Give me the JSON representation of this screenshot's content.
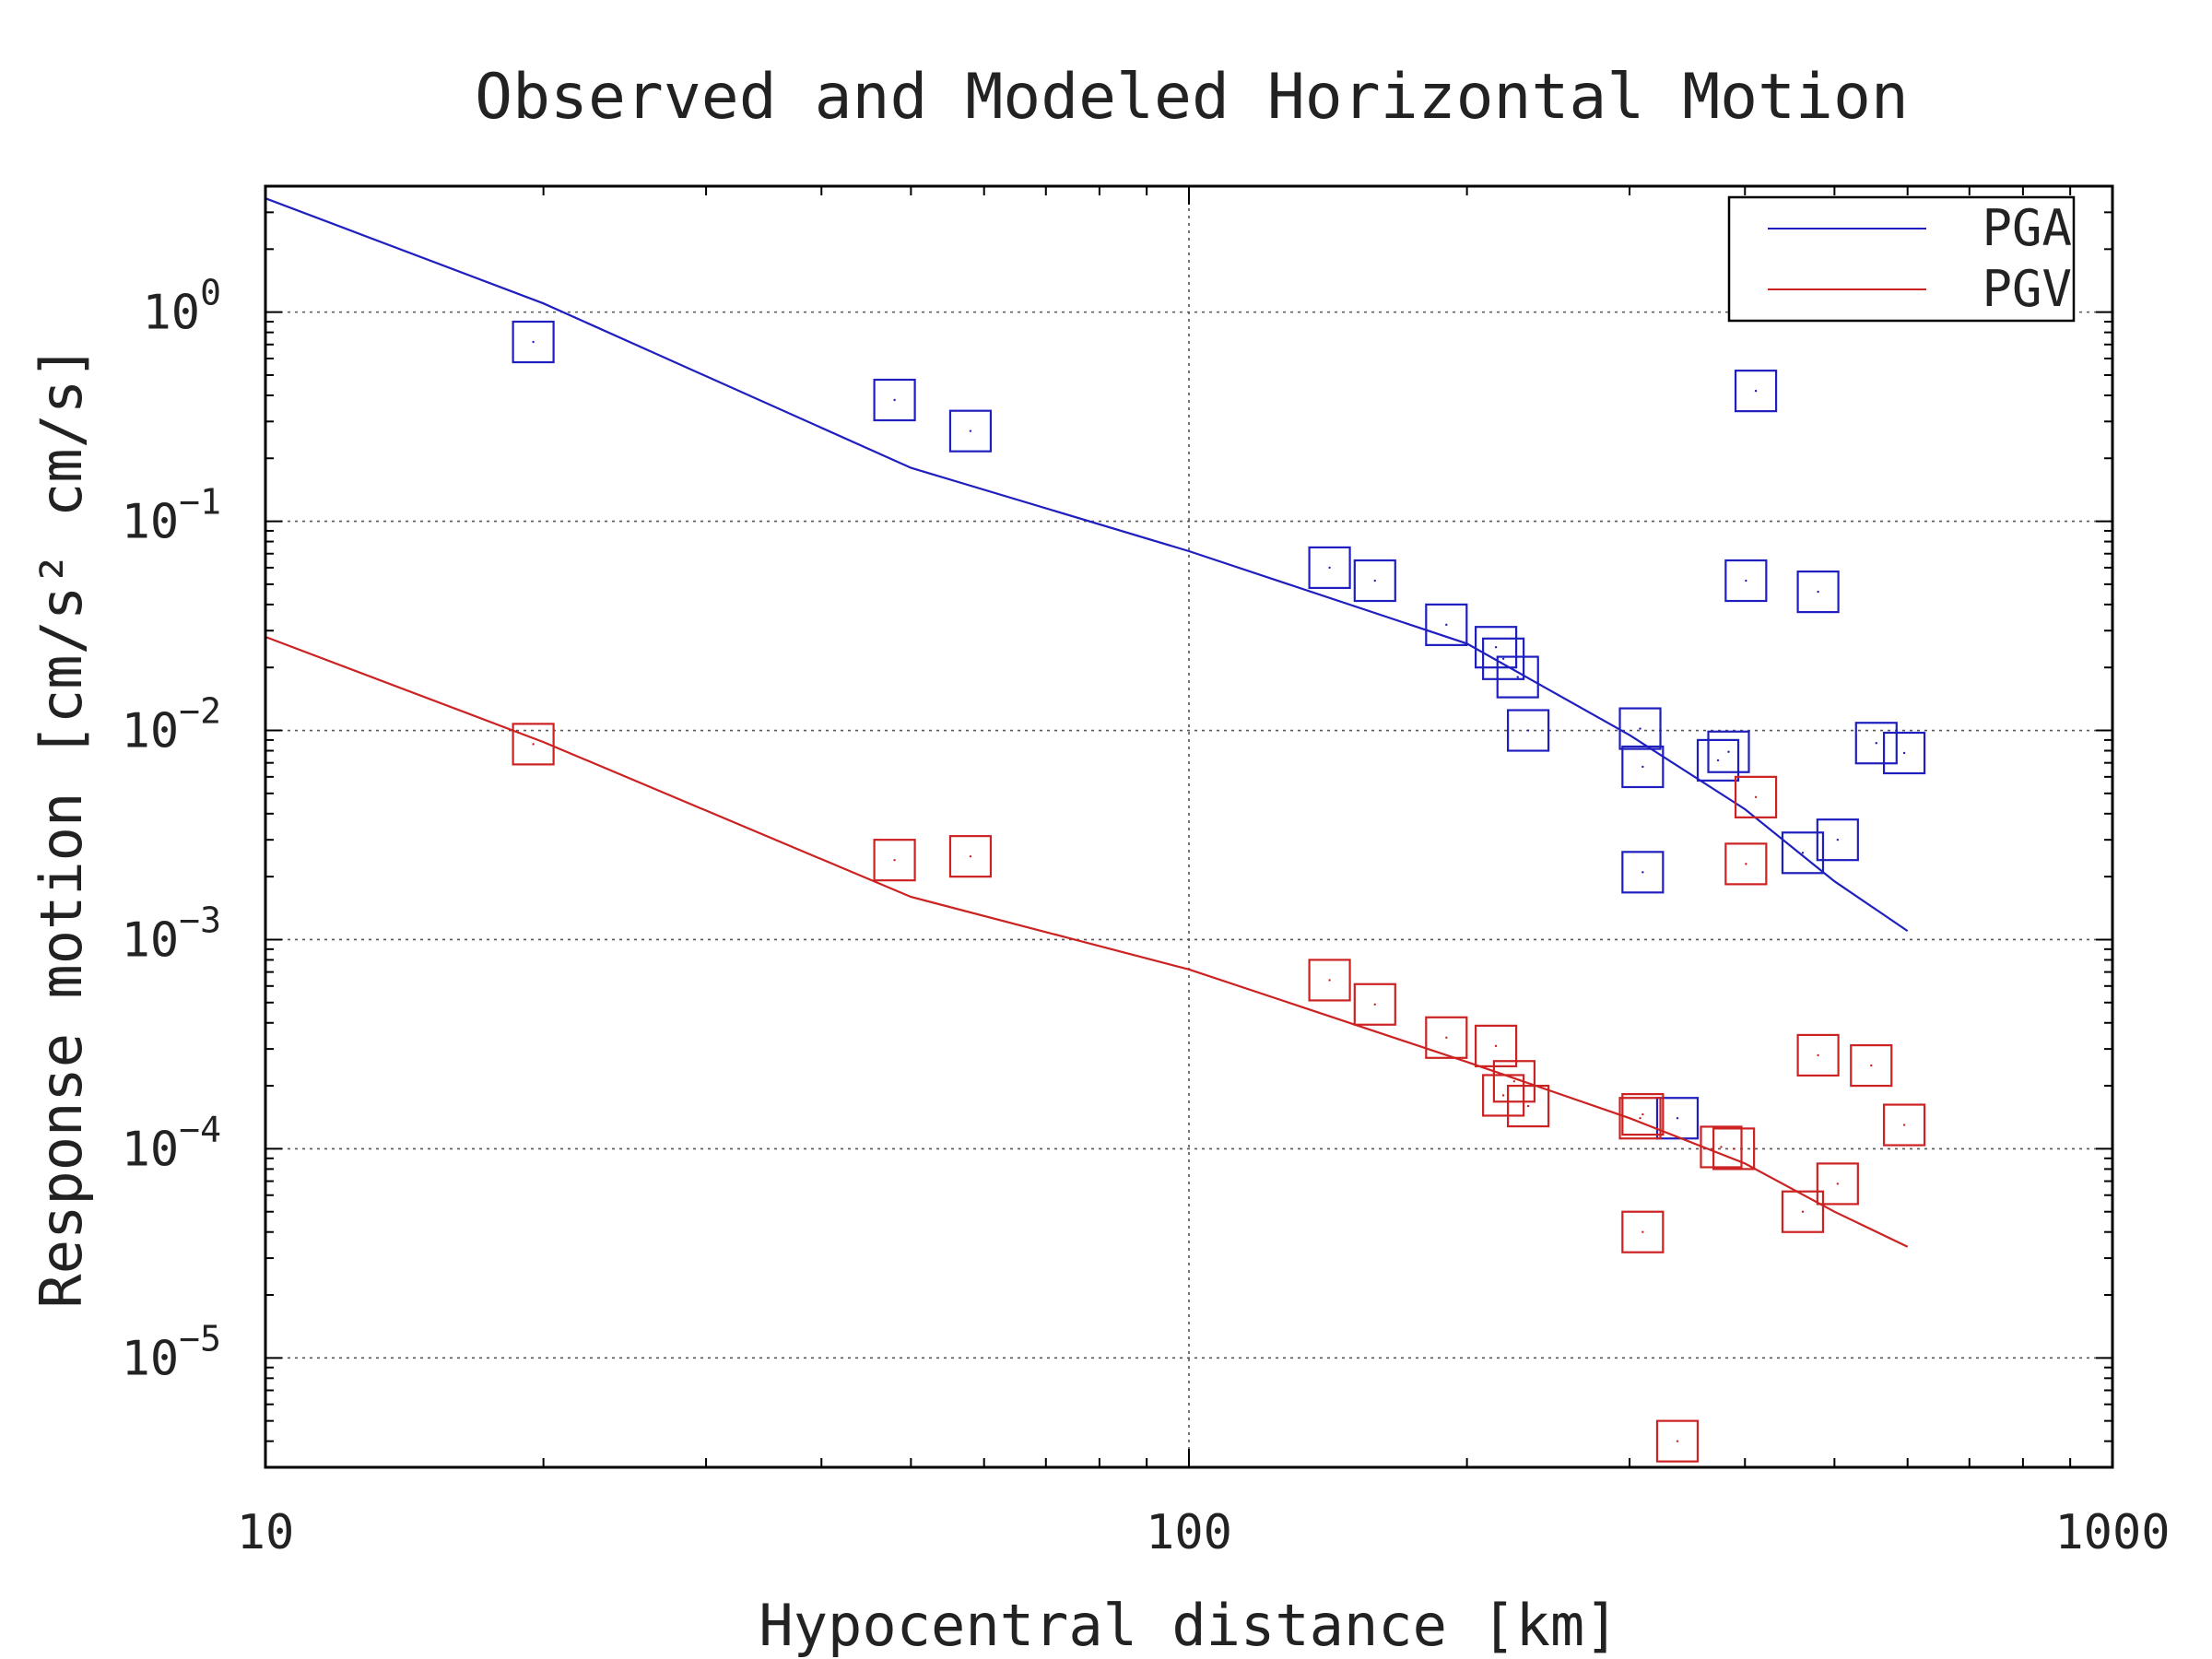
{
  "chart_data": {
    "type": "scatter",
    "title": "Observed and Modeled Horizontal Motion",
    "xlabel": "Hypocentral distance [km]",
    "ylabel": "Response motion [cm/s² cm/s]",
    "xscale": "log",
    "yscale": "log",
    "xlim": [
      10,
      1000
    ],
    "ylim": [
      3e-06,
      4
    ],
    "x_ticks": [
      {
        "value": 10,
        "label": "10"
      },
      {
        "value": 100,
        "label": "100"
      },
      {
        "value": 1000,
        "label": "1000"
      }
    ],
    "y_ticks": [
      {
        "value": 1,
        "base": "10",
        "exp": "0"
      },
      {
        "value": 0.1,
        "base": "10",
        "exp": "−1"
      },
      {
        "value": 0.01,
        "base": "10",
        "exp": "−2"
      },
      {
        "value": 0.001,
        "base": "10",
        "exp": "−3"
      },
      {
        "value": 0.0001,
        "base": "10",
        "exp": "−4"
      },
      {
        "value": 1e-05,
        "base": "10",
        "exp": "−5"
      }
    ],
    "grid": true,
    "legend_position": "top-right",
    "series": [
      {
        "name": "PGA",
        "color": "#1f1fbf",
        "model_line": [
          [
            10,
            3.5
          ],
          [
            20,
            1.1
          ],
          [
            50,
            0.18
          ],
          [
            100,
            0.072
          ],
          [
            200,
            0.026
          ],
          [
            300,
            0.0095
          ],
          [
            400,
            0.0042
          ],
          [
            500,
            0.0019
          ],
          [
            600,
            0.0011
          ]
        ],
        "observed": [
          [
            19.5,
            0.72
          ],
          [
            48,
            0.38
          ],
          [
            58,
            0.27
          ],
          [
            142,
            0.06
          ],
          [
            159,
            0.052
          ],
          [
            190,
            0.032
          ],
          [
            215,
            0.025
          ],
          [
            219,
            0.022
          ],
          [
            227,
            0.018
          ],
          [
            233,
            0.01
          ],
          [
            308,
            0.0102
          ],
          [
            310,
            0.0067
          ],
          [
            374,
            0.0072
          ],
          [
            384,
            0.0079
          ],
          [
            401,
            0.052
          ],
          [
            411,
            0.42
          ],
          [
            462,
            0.0026
          ],
          [
            480,
            0.046
          ],
          [
            504,
            0.003
          ],
          [
            555,
            0.0087
          ],
          [
            595,
            0.0078
          ],
          [
            310,
            0.0021
          ],
          [
            338,
            0.00014
          ]
        ]
      },
      {
        "name": "PGV",
        "color": "#cc2222",
        "model_line": [
          [
            10,
            0.028
          ],
          [
            20,
            0.0088
          ],
          [
            50,
            0.0016
          ],
          [
            100,
            0.00072
          ],
          [
            200,
            0.00026
          ],
          [
            300,
            0.00014
          ],
          [
            400,
            8.5e-05
          ],
          [
            500,
            5e-05
          ],
          [
            600,
            3.4e-05
          ]
        ],
        "observed": [
          [
            19.5,
            0.0086
          ],
          [
            48,
            0.0024
          ],
          [
            58,
            0.0025
          ],
          [
            142,
            0.00064
          ],
          [
            159,
            0.00049
          ],
          [
            190,
            0.00034
          ],
          [
            215,
            0.00031
          ],
          [
            219,
            0.00018
          ],
          [
            225,
            0.00021
          ],
          [
            233,
            0.00016
          ],
          [
            308,
            0.00014
          ],
          [
            310,
            0.000146
          ],
          [
            310,
            4e-05
          ],
          [
            338,
            4e-06
          ],
          [
            377,
            0.000102
          ],
          [
            389,
            0.0001
          ],
          [
            401,
            0.0023
          ],
          [
            411,
            0.0048
          ],
          [
            462,
            5e-05
          ],
          [
            480,
            0.00028
          ],
          [
            504,
            6.8e-05
          ],
          [
            548,
            0.00025
          ],
          [
            595,
            0.00013
          ]
        ]
      }
    ]
  }
}
